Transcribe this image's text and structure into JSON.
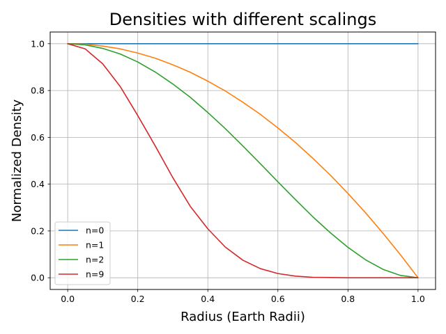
{
  "chart_data": {
    "type": "line",
    "title": "Densities with different scalings",
    "xlabel": "Radius (Earth Radii)",
    "ylabel": "Normalized Density",
    "xlim": [
      -0.05,
      1.05
    ],
    "ylim": [
      -0.05,
      1.05
    ],
    "xticks": [
      0.0,
      0.2,
      0.4,
      0.6,
      0.8,
      1.0
    ],
    "xtick_labels": [
      "0.0",
      "0.2",
      "0.4",
      "0.6",
      "0.8",
      "1.0"
    ],
    "yticks": [
      0.0,
      0.2,
      0.4,
      0.6,
      0.8,
      1.0
    ],
    "ytick_labels": [
      "0.0",
      "0.2",
      "0.4",
      "0.6",
      "0.8",
      "1.0"
    ],
    "grid": true,
    "legend_position": "lower-left",
    "x": [
      0.0,
      0.05,
      0.1,
      0.15,
      0.2,
      0.25,
      0.3,
      0.35,
      0.4,
      0.45,
      0.5,
      0.55,
      0.6,
      0.65,
      0.7,
      0.75,
      0.8,
      0.85,
      0.9,
      0.95,
      1.0
    ],
    "series": [
      {
        "name": "n=0",
        "color": "#1f77b4",
        "values": [
          1.0,
          1.0,
          1.0,
          1.0,
          1.0,
          1.0,
          1.0,
          1.0,
          1.0,
          1.0,
          1.0,
          1.0,
          1.0,
          1.0,
          1.0,
          1.0,
          1.0,
          1.0,
          1.0,
          1.0,
          1.0
        ]
      },
      {
        "name": "n=1",
        "color": "#ff7f0e",
        "values": [
          1.0,
          0.998,
          0.99,
          0.978,
          0.96,
          0.938,
          0.91,
          0.878,
          0.84,
          0.798,
          0.75,
          0.698,
          0.64,
          0.578,
          0.51,
          0.438,
          0.36,
          0.278,
          0.19,
          0.098,
          0.0
        ]
      },
      {
        "name": "n=2",
        "color": "#2ca02c",
        "values": [
          1.0,
          0.995,
          0.98,
          0.956,
          0.922,
          0.879,
          0.828,
          0.771,
          0.706,
          0.637,
          0.563,
          0.487,
          0.41,
          0.334,
          0.26,
          0.192,
          0.13,
          0.077,
          0.036,
          0.01,
          0.0
        ]
      },
      {
        "name": "n=9",
        "color": "#d62728",
        "values": [
          1.0,
          0.978,
          0.914,
          0.817,
          0.693,
          0.563,
          0.428,
          0.305,
          0.209,
          0.131,
          0.075,
          0.039,
          0.018,
          0.007,
          0.002,
          0.001,
          0.0,
          0.0,
          0.0,
          0.0,
          0.0
        ]
      }
    ]
  }
}
